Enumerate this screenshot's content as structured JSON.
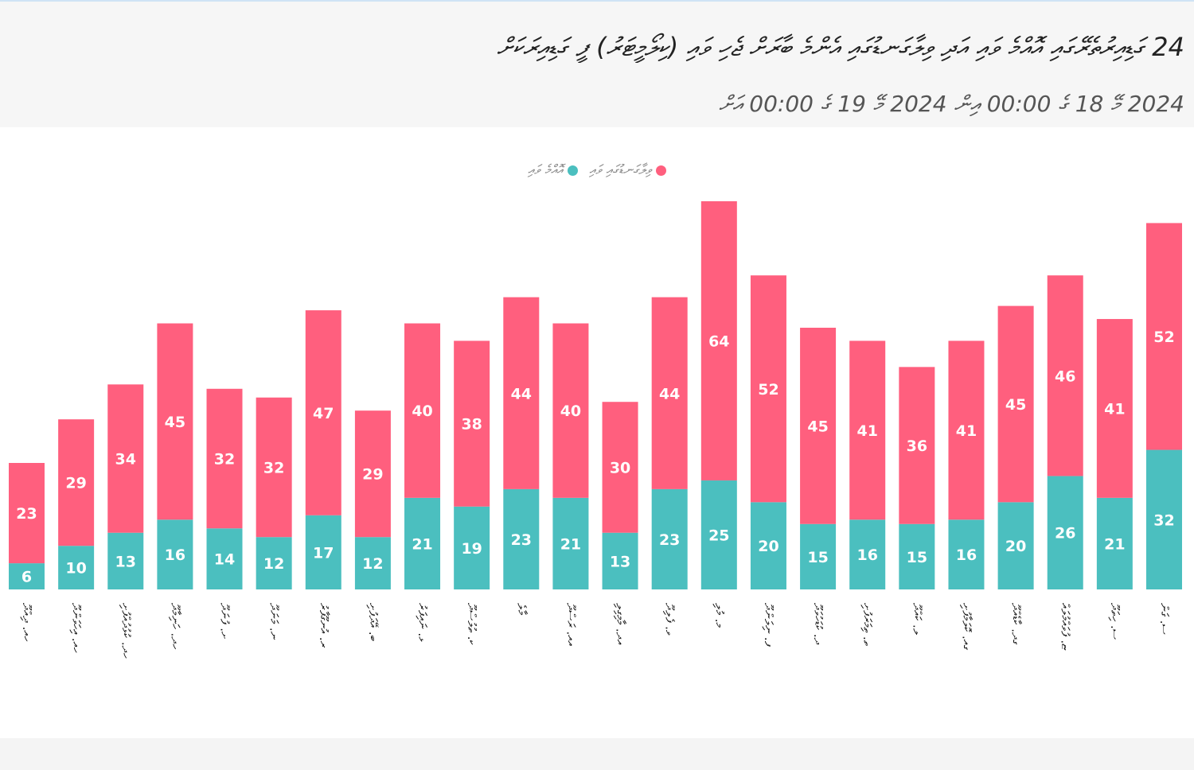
{
  "title": "24 ގަޑިއިރުތެރޭގައި އޮއްމެ ވައި އަދި ވިލާގަނޑުގައި އެންމެ ބާރަށް ޖެހި ވައި (ކިލޯމީޓަރު) ފީ ގަޑިއިރަކަށް",
  "subtitle": "2024 މޭ 18 ގެ 00:00 އިން 2024 މޭ 19 ގެ 00:00 އަށް",
  "colors": {
    "average": "#4bbfbf",
    "gust": "#ff5f7e"
  },
  "chart_data": {
    "type": "bar",
    "stacked": true,
    "legend_position": "top-center",
    "grid": false,
    "ylim": [
      0,
      90
    ],
    "categories": [
      "ހއ. ދިއްދޫ",
      "ހއ. އިހަވަންދޫ",
      "ހދ. ކުޅުދުއްފުށި",
      "ހދ. ހަނިމާދޫ",
      "ށ. ފުނަދޫ",
      "ނ. މަނަދޫ",
      "ރ. އުނގޫފާރު",
      "ބ. އޭދަފުށި",
      "ޅ. ނައިފަރު",
      "ކ. ތުލުސްދޫ",
      "މާލެ",
      "އއ. ރަސްދޫ",
      "އދ. މާމިގިލި",
      "ވ. ފެލިދޫ",
      "މ. މުލި",
      "ފ. ނިލަންދޫ",
      "ދ. ކުޑަހުވަދޫ",
      "ތ. ތިމަރަފުށި",
      "ލ. ކައްދޫ",
      "ގއ. ކޮލަމާފުށި",
      "ގދ. ކާޑެއްދޫ",
      "ޏ. ފުވައްމުލައް",
      "ސ. ހިތަދޫ",
      "ސ. ގަން"
    ],
    "series": [
      {
        "name": "އޮއްމެ ވައި",
        "color": "#4bbfbf",
        "values": [
          6,
          10,
          13,
          16,
          14,
          12,
          17,
          12,
          21,
          19,
          23,
          21,
          13,
          23,
          25,
          20,
          15,
          16,
          15,
          16,
          20,
          26,
          21,
          32
        ]
      },
      {
        "name": "ވިލާގަނޑުގައި ވައި",
        "color": "#ff5f7e",
        "values": [
          23,
          29,
          34,
          45,
          32,
          32,
          47,
          29,
          40,
          38,
          44,
          40,
          30,
          44,
          64,
          52,
          45,
          41,
          36,
          41,
          45,
          46,
          41,
          52
        ]
      }
    ]
  }
}
